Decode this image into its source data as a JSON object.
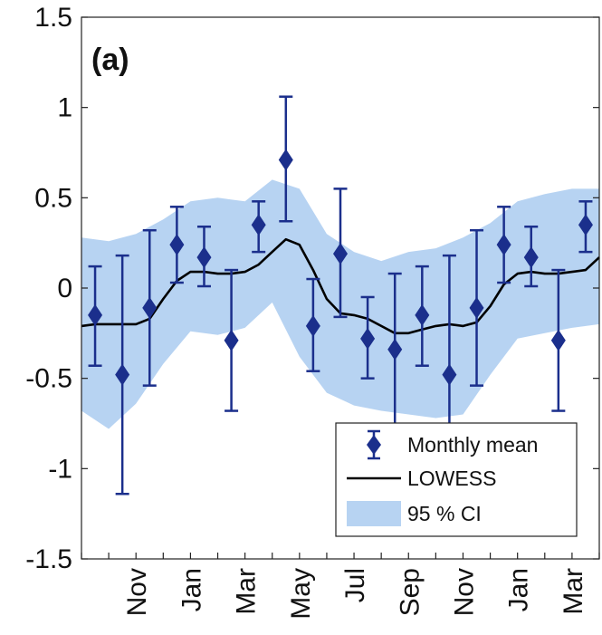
{
  "chart_data": {
    "type": "line",
    "panel_label": "(a)",
    "title": "",
    "xlabel": "",
    "ylabel": "",
    "ylim": [
      -1.5,
      1.5
    ],
    "yticks": [
      -1.5,
      -1,
      -0.5,
      0,
      0.5,
      1,
      1.5
    ],
    "ytick_labels": [
      "-1.5",
      "-1",
      "-0.5",
      "0",
      "0.5",
      "1",
      "1.5"
    ],
    "xlim": [
      0,
      19
    ],
    "xticks": [
      {
        "x": 2,
        "label": "Nov"
      },
      {
        "x": 4,
        "label": "Jan"
      },
      {
        "x": 6,
        "label": "Mar"
      },
      {
        "x": 8,
        "label": "May"
      },
      {
        "x": 10,
        "label": "Jul"
      },
      {
        "x": 12,
        "label": "Sep"
      },
      {
        "x": 14,
        "label": "Nov"
      },
      {
        "x": 16,
        "label": "Jan"
      },
      {
        "x": 18,
        "label": "Mar"
      }
    ],
    "grid": false,
    "legend_position": "bottom-right",
    "series": [
      {
        "name": "Monthly mean",
        "kind": "errorbar",
        "color": "#1b2f8c",
        "x": [
          0.5,
          1.5,
          2.5,
          3.5,
          4.5,
          5.5,
          6.5,
          7.5,
          8.5,
          9.5,
          10.5,
          11.5,
          12.5,
          13.5,
          14.5,
          15.5,
          16.5,
          17.5,
          18.5
        ],
        "y": [
          -0.15,
          -0.48,
          -0.11,
          0.24,
          0.17,
          -0.29,
          0.35,
          0.71,
          -0.21,
          0.19,
          -0.28,
          -0.34,
          -0.15,
          -0.48,
          -0.11,
          0.24,
          0.17,
          -0.29,
          0.35
        ],
        "y_low": [
          -0.43,
          -1.14,
          -0.54,
          0.03,
          0.01,
          -0.68,
          0.2,
          0.37,
          -0.46,
          -0.16,
          -0.5,
          -0.78,
          -0.43,
          -0.78,
          -0.54,
          0.03,
          0.01,
          -0.68,
          0.2
        ],
        "y_high": [
          0.12,
          0.18,
          0.32,
          0.45,
          0.34,
          0.1,
          0.48,
          1.06,
          0.05,
          0.55,
          -0.05,
          0.08,
          0.12,
          0.18,
          0.32,
          0.45,
          0.34,
          0.1,
          0.48
        ]
      },
      {
        "name": "LOWESS",
        "kind": "line",
        "color": "#000000",
        "x": [
          0,
          0.5,
          1,
          1.5,
          2,
          2.5,
          3,
          3.5,
          4,
          4.5,
          5,
          5.5,
          6,
          6.5,
          7,
          7.5,
          8,
          8.5,
          9,
          9.5,
          10,
          10.5,
          11,
          11.5,
          12,
          12.5,
          13,
          13.5,
          14,
          14.5,
          15,
          15.5,
          16,
          16.5,
          17,
          17.5,
          18,
          18.5,
          19
        ],
        "y": [
          -0.21,
          -0.2,
          -0.2,
          -0.2,
          -0.2,
          -0.17,
          -0.06,
          0.04,
          0.09,
          0.09,
          0.08,
          0.08,
          0.09,
          0.13,
          0.2,
          0.27,
          0.24,
          0.1,
          -0.06,
          -0.14,
          -0.15,
          -0.17,
          -0.21,
          -0.25,
          -0.25,
          -0.23,
          -0.21,
          -0.2,
          -0.21,
          -0.19,
          -0.1,
          0.02,
          0.08,
          0.09,
          0.08,
          0.08,
          0.09,
          0.1,
          0.17
        ]
      },
      {
        "name": "95 % CI",
        "kind": "band",
        "color": "#b7d3f2",
        "x": [
          0,
          1,
          2,
          3,
          4,
          5,
          6,
          7,
          8,
          9,
          10,
          11,
          12,
          13,
          14,
          15,
          16,
          17,
          18,
          19
        ],
        "lower": [
          -0.68,
          -0.78,
          -0.64,
          -0.42,
          -0.24,
          -0.26,
          -0.22,
          -0.08,
          -0.38,
          -0.58,
          -0.65,
          -0.68,
          -0.7,
          -0.72,
          -0.7,
          -0.48,
          -0.28,
          -0.25,
          -0.22,
          -0.2
        ],
        "upper": [
          0.28,
          0.26,
          0.3,
          0.38,
          0.48,
          0.5,
          0.48,
          0.6,
          0.55,
          0.3,
          0.2,
          0.15,
          0.2,
          0.22,
          0.28,
          0.36,
          0.48,
          0.52,
          0.55,
          0.55
        ]
      }
    ],
    "legend": [
      {
        "label": "Monthly mean",
        "symbol": "errorbar-diamond"
      },
      {
        "label": "LOWESS",
        "symbol": "line"
      },
      {
        "label": "95 % CI",
        "symbol": "patch"
      }
    ]
  }
}
